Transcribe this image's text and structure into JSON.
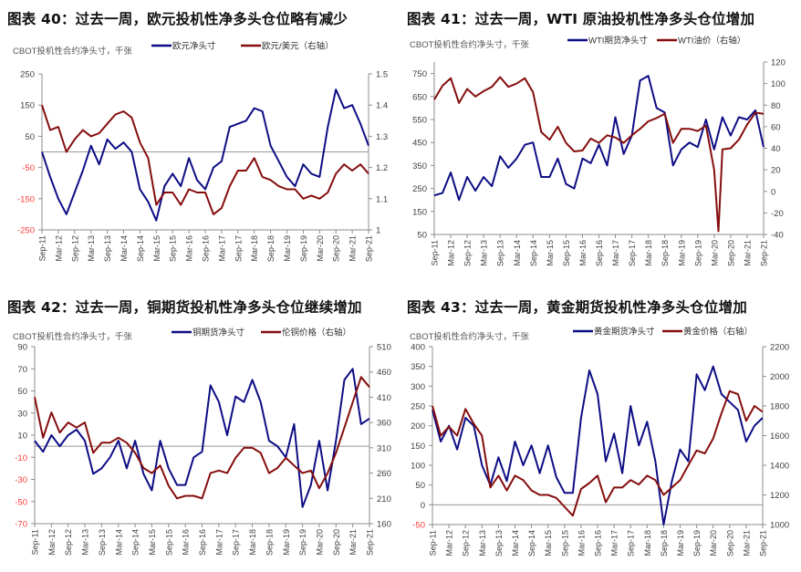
{
  "colors": {
    "blue": "#0d0d85",
    "red": "#850d0d",
    "axis": "#8c8c8c",
    "tick_text": "#404040",
    "negative_tick": "#ff3b3b"
  },
  "chart_data": [
    {
      "type": "line",
      "title": "图表 40：过去一周，欧元投机性净多头仓位略有减少",
      "subtitle": "CBOT投机性合约净头寸，千张",
      "x_tick_labels": [
        "Sep-11",
        "Mar-12",
        "Sep-12",
        "Mar-13",
        "Sep-13",
        "Mar-14",
        "Sep-14",
        "Mar-15",
        "Sep-15",
        "Mar-16",
        "Sep-16",
        "Mar-17",
        "Sep-17",
        "Mar-18",
        "Sep-18",
        "Mar-19",
        "Sep-19",
        "Mar-20",
        "Sep-20",
        "Mar-21",
        "Sep-21"
      ],
      "xlim": [
        2011.67,
        2021.67
      ],
      "x": [
        2011.67,
        2011.92,
        2012.17,
        2012.42,
        2012.67,
        2012.92,
        2013.17,
        2013.42,
        2013.67,
        2013.92,
        2014.17,
        2014.42,
        2014.67,
        2014.92,
        2015.17,
        2015.42,
        2015.67,
        2015.92,
        2016.17,
        2016.42,
        2016.67,
        2016.92,
        2017.17,
        2017.42,
        2017.67,
        2017.92,
        2018.17,
        2018.42,
        2018.67,
        2018.92,
        2019.17,
        2019.42,
        2019.67,
        2019.92,
        2020.17,
        2020.42,
        2020.67,
        2020.92,
        2021.17,
        2021.42,
        2021.67
      ],
      "left_axis": {
        "ylim": [
          -250,
          250
        ],
        "ticks": [
          -250,
          -150,
          -50,
          50,
          150,
          250
        ],
        "zero_line": true
      },
      "right_axis": {
        "ylim": [
          1,
          1.5
        ],
        "ticks": [
          1,
          1.1,
          1.2,
          1.3,
          1.4,
          1.5
        ]
      },
      "series": [
        {
          "name": "欧元净头寸",
          "axis": "left",
          "color": "blue",
          "values": [
            0,
            -80,
            -150,
            -200,
            -130,
            -60,
            20,
            -40,
            40,
            10,
            30,
            0,
            -120,
            -160,
            -220,
            -110,
            -70,
            -110,
            -20,
            -90,
            -120,
            -50,
            -30,
            80,
            90,
            100,
            140,
            130,
            20,
            -30,
            -80,
            -110,
            -40,
            -70,
            -80,
            80,
            200,
            140,
            150,
            90,
            20
          ]
        },
        {
          "name": "欧元/美元（右轴）",
          "axis": "right",
          "color": "red",
          "values": [
            1.4,
            1.32,
            1.33,
            1.25,
            1.29,
            1.32,
            1.3,
            1.31,
            1.34,
            1.37,
            1.38,
            1.36,
            1.28,
            1.23,
            1.08,
            1.12,
            1.12,
            1.08,
            1.13,
            1.12,
            1.12,
            1.05,
            1.07,
            1.14,
            1.19,
            1.19,
            1.23,
            1.17,
            1.16,
            1.14,
            1.13,
            1.13,
            1.1,
            1.11,
            1.1,
            1.12,
            1.18,
            1.21,
            1.19,
            1.21,
            1.18
          ]
        }
      ]
    },
    {
      "type": "line",
      "title": "图表 41：过去一周，WTI 原油投机性净多头仓位增加",
      "subtitle": "CBOT投机性合约净头寸，千张",
      "x_tick_labels": [
        "Sep-11",
        "Mar-12",
        "Sep-12",
        "Mar-13",
        "Sep-13",
        "Mar-14",
        "Sep-14",
        "Mar-15",
        "Sep-15",
        "Mar-16",
        "Sep-16",
        "Mar-17",
        "Sep-17",
        "Mar-18",
        "Sep-18",
        "Mar-19",
        "Sep-19",
        "Mar-20",
        "Sep-20",
        "Mar-21",
        "Sep-21"
      ],
      "xlim": [
        2011.67,
        2021.67
      ],
      "x": [
        2011.67,
        2011.92,
        2012.17,
        2012.42,
        2012.67,
        2012.92,
        2013.17,
        2013.42,
        2013.67,
        2013.92,
        2014.17,
        2014.42,
        2014.67,
        2014.92,
        2015.17,
        2015.42,
        2015.67,
        2015.92,
        2016.17,
        2016.42,
        2016.67,
        2016.92,
        2017.17,
        2017.42,
        2017.67,
        2017.92,
        2018.17,
        2018.42,
        2018.67,
        2018.92,
        2019.17,
        2019.42,
        2019.67,
        2019.92,
        2020.17,
        2020.42,
        2020.67,
        2020.92,
        2021.17,
        2021.42,
        2021.67
      ],
      "left_axis": {
        "ylim": [
          50,
          800
        ],
        "ticks": [
          50,
          150,
          250,
          350,
          450,
          550,
          650,
          750
        ],
        "zero_line": false
      },
      "right_axis": {
        "ylim": [
          -40,
          120
        ],
        "ticks": [
          -40,
          -20,
          0,
          20,
          40,
          60,
          80,
          100,
          120
        ]
      },
      "series": [
        {
          "name": "WTI期货净头寸",
          "axis": "left",
          "color": "blue",
          "values": [
            220,
            230,
            320,
            200,
            300,
            240,
            300,
            260,
            390,
            340,
            380,
            440,
            450,
            300,
            300,
            380,
            270,
            250,
            380,
            360,
            440,
            350,
            560,
            400,
            480,
            720,
            740,
            600,
            580,
            350,
            420,
            450,
            430,
            550,
            420,
            560,
            480,
            560,
            550,
            590,
            430
          ]
        },
        {
          "name": "WTI油价（右轴）",
          "axis": "right",
          "color": "red",
          "values": [
            85,
            98,
            105,
            82,
            95,
            88,
            93,
            97,
            106,
            97,
            100,
            105,
            92,
            55,
            48,
            60,
            45,
            37,
            38,
            49,
            45,
            52,
            50,
            45,
            52,
            58,
            65,
            68,
            72,
            45,
            58,
            58,
            56,
            61,
            20,
            39,
            40,
            48,
            62,
            73,
            72
          ],
          "extra_points": [
            {
              "x": 2020.3,
              "value": -37
            }
          ]
        }
      ]
    },
    {
      "type": "line",
      "title": "图表 42：过去一周，铜期货投机性净多头仓位继续增加",
      "subtitle": "CBOT投机性合约净头寸，千张",
      "x_tick_labels": [
        "Sep-11",
        "Mar-12",
        "Sep-12",
        "Mar-13",
        "Sep-13",
        "Mar-14",
        "Sep-14",
        "Mar-15",
        "Sep-15",
        "Mar-16",
        "Sep-16",
        "Mar-17",
        "Sep-17",
        "Mar-18",
        "Sep-18",
        "Mar-19",
        "Sep-19",
        "Mar-20",
        "Sep-20",
        "Mar-21",
        "Sep-21"
      ],
      "xlim": [
        2011.67,
        2021.67
      ],
      "x": [
        2011.67,
        2011.92,
        2012.17,
        2012.42,
        2012.67,
        2012.92,
        2013.17,
        2013.42,
        2013.67,
        2013.92,
        2014.17,
        2014.42,
        2014.67,
        2014.92,
        2015.17,
        2015.42,
        2015.67,
        2015.92,
        2016.17,
        2016.42,
        2016.67,
        2016.92,
        2017.17,
        2017.42,
        2017.67,
        2017.92,
        2018.17,
        2018.42,
        2018.67,
        2018.92,
        2019.17,
        2019.42,
        2019.67,
        2019.92,
        2020.17,
        2020.42,
        2020.67,
        2020.92,
        2021.17,
        2021.42,
        2021.67
      ],
      "left_axis": {
        "ylim": [
          -70,
          90
        ],
        "ticks": [
          -70,
          -50,
          -30,
          -10,
          10,
          30,
          50,
          70,
          90
        ],
        "zero_line": true
      },
      "right_axis": {
        "ylim": [
          160,
          510
        ],
        "ticks": [
          160,
          210,
          260,
          310,
          360,
          410,
          460,
          510
        ]
      },
      "series": [
        {
          "name": "铜期货净头寸",
          "axis": "left",
          "color": "blue",
          "values": [
            5,
            -5,
            10,
            0,
            10,
            15,
            5,
            -25,
            -20,
            -10,
            5,
            -20,
            5,
            -25,
            -40,
            5,
            -20,
            -35,
            -35,
            -10,
            -5,
            55,
            40,
            10,
            45,
            40,
            60,
            40,
            5,
            0,
            -10,
            20,
            -55,
            -35,
            5,
            -40,
            5,
            60,
            70,
            20,
            25
          ]
        },
        {
          "name": "伦铜价格（右轴）",
          "axis": "right",
          "color": "red",
          "values": [
            410,
            330,
            380,
            340,
            360,
            350,
            360,
            300,
            320,
            320,
            330,
            320,
            300,
            270,
            260,
            275,
            235,
            210,
            215,
            215,
            210,
            260,
            265,
            260,
            290,
            310,
            310,
            300,
            260,
            270,
            290,
            275,
            260,
            265,
            230,
            260,
            300,
            350,
            400,
            450,
            430
          ]
        }
      ]
    },
    {
      "type": "line",
      "title": "图表 43：过去一周，黄金期货投机性净多头仓位增加",
      "subtitle": "CBOT投机性合约净头寸，千张",
      "x_tick_labels": [
        "Sep-11",
        "Mar-12",
        "Sep-12",
        "Mar-13",
        "Sep-13",
        "Mar-14",
        "Sep-14",
        "Mar-15",
        "Sep-15",
        "Mar-16",
        "Sep-16",
        "Mar-17",
        "Sep-17",
        "Mar-18",
        "Sep-18",
        "Mar-19",
        "Sep-19",
        "Mar-20",
        "Sep-20",
        "Mar-21",
        "Sep-21"
      ],
      "xlim": [
        2011.67,
        2021.67
      ],
      "x": [
        2011.67,
        2011.92,
        2012.17,
        2012.42,
        2012.67,
        2012.92,
        2013.17,
        2013.42,
        2013.67,
        2013.92,
        2014.17,
        2014.42,
        2014.67,
        2014.92,
        2015.17,
        2015.42,
        2015.67,
        2015.92,
        2016.17,
        2016.42,
        2016.67,
        2016.92,
        2017.17,
        2017.42,
        2017.67,
        2017.92,
        2018.17,
        2018.42,
        2018.67,
        2018.92,
        2019.17,
        2019.42,
        2019.67,
        2019.92,
        2020.17,
        2020.42,
        2020.67,
        2020.92,
        2021.17,
        2021.42,
        2021.67
      ],
      "left_axis": {
        "ylim": [
          -50,
          400
        ],
        "ticks": [
          -50,
          0,
          50,
          100,
          150,
          200,
          250,
          300,
          350,
          400
        ],
        "zero_line": true
      },
      "right_axis": {
        "ylim": [
          1000,
          2200
        ],
        "ticks": [
          1000,
          1200,
          1400,
          1600,
          1800,
          2000,
          2200
        ]
      },
      "series": [
        {
          "name": "黄金期货净头寸",
          "axis": "left",
          "color": "blue",
          "values": [
            240,
            160,
            200,
            140,
            220,
            200,
            100,
            50,
            120,
            60,
            160,
            100,
            150,
            80,
            150,
            70,
            30,
            30,
            220,
            340,
            280,
            110,
            180,
            80,
            250,
            150,
            210,
            110,
            -50,
            60,
            140,
            110,
            330,
            290,
            350,
            280,
            260,
            240,
            160,
            200,
            220
          ]
        },
        {
          "name": "黄金价格（右轴）",
          "axis": "right",
          "color": "red",
          "values": [
            1800,
            1600,
            1660,
            1600,
            1780,
            1680,
            1600,
            1250,
            1330,
            1230,
            1330,
            1300,
            1230,
            1200,
            1200,
            1180,
            1120,
            1060,
            1240,
            1280,
            1330,
            1150,
            1250,
            1250,
            1300,
            1270,
            1330,
            1300,
            1200,
            1250,
            1300,
            1400,
            1500,
            1480,
            1580,
            1750,
            1900,
            1880,
            1700,
            1800,
            1760
          ]
        }
      ]
    }
  ]
}
